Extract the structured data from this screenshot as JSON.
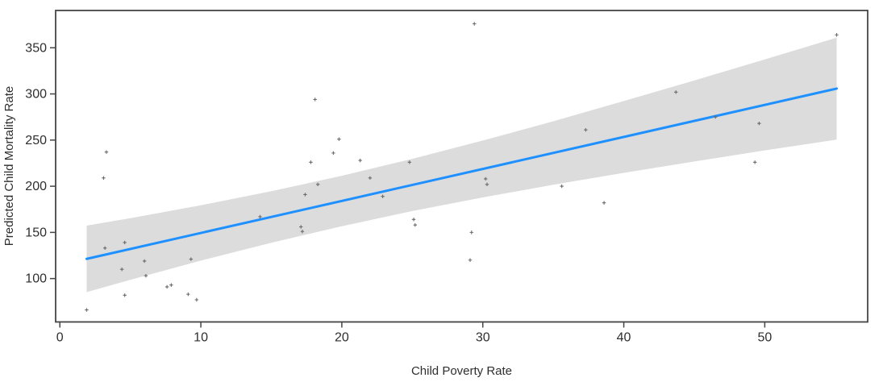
{
  "chart_data": {
    "type": "scatter",
    "title": "",
    "xlabel": "Child Poverty Rate",
    "ylabel": "Predicted Child Mortality Rate",
    "xlim": [
      -0.3,
      57.3
    ],
    "ylim": [
      53,
      390.4
    ],
    "x_ticks": [
      0,
      10,
      20,
      30,
      40,
      50
    ],
    "y_ticks": [
      100,
      150,
      200,
      250,
      300,
      350
    ],
    "grid": false,
    "legend": "none",
    "colors": {
      "regression_line": "#1E90FF",
      "confidence_band": "#DCDCDC",
      "marker": "#6a6a6a",
      "axis": "#454545",
      "text": "#2e2e2e",
      "background": "#ffffff"
    },
    "series": [
      {
        "name": "observations",
        "type": "scatter",
        "marker": "plus",
        "points": [
          [
            1.9,
            66
          ],
          [
            3.1,
            209
          ],
          [
            3.2,
            133
          ],
          [
            3.3,
            237
          ],
          [
            4.4,
            110
          ],
          [
            4.6,
            139
          ],
          [
            4.6,
            82
          ],
          [
            6.0,
            119
          ],
          [
            6.1,
            103
          ],
          [
            7.6,
            91
          ],
          [
            7.9,
            93
          ],
          [
            9.1,
            83
          ],
          [
            9.3,
            121
          ],
          [
            9.7,
            77
          ],
          [
            14.2,
            167
          ],
          [
            17.1,
            156
          ],
          [
            17.2,
            151
          ],
          [
            17.4,
            191
          ],
          [
            17.8,
            226
          ],
          [
            18.1,
            294
          ],
          [
            18.3,
            202
          ],
          [
            19.4,
            236
          ],
          [
            19.8,
            251
          ],
          [
            21.3,
            228
          ],
          [
            22.0,
            209
          ],
          [
            22.9,
            189
          ],
          [
            24.8,
            226
          ],
          [
            25.1,
            164
          ],
          [
            25.2,
            158
          ],
          [
            29.1,
            120
          ],
          [
            29.2,
            150
          ],
          [
            29.4,
            376
          ],
          [
            30.2,
            208
          ],
          [
            30.3,
            202
          ],
          [
            35.6,
            200
          ],
          [
            37.3,
            261
          ],
          [
            38.6,
            182
          ],
          [
            43.7,
            302
          ],
          [
            46.5,
            275
          ],
          [
            49.3,
            226
          ],
          [
            49.6,
            268
          ],
          [
            55.1,
            364
          ]
        ]
      },
      {
        "name": "fitted-regression-line",
        "type": "line",
        "points": [
          [
            1.9,
            121.3
          ],
          [
            55.1,
            305.8
          ]
        ]
      },
      {
        "name": "confidence-band",
        "type": "band",
        "points": [
          {
            "x": 1.9,
            "low": 85.3,
            "high": 157.3
          },
          {
            "x": 5.0,
            "low": 98.6,
            "high": 165.4
          },
          {
            "x": 10.0,
            "low": 119.4,
            "high": 179.4
          },
          {
            "x": 15.0,
            "low": 138.8,
            "high": 194.6
          },
          {
            "x": 20.0,
            "low": 156.7,
            "high": 211.3
          },
          {
            "x": 25.0,
            "low": 173.1,
            "high": 229.7
          },
          {
            "x": 30.0,
            "low": 187.9,
            "high": 249.5
          },
          {
            "x": 35.0,
            "low": 201.6,
            "high": 270.4
          },
          {
            "x": 40.0,
            "low": 214.5,
            "high": 292.3
          },
          {
            "x": 45.0,
            "low": 226.8,
            "high": 314.6
          },
          {
            "x": 50.0,
            "low": 238.8,
            "high": 337.4
          },
          {
            "x": 55.1,
            "low": 250.5,
            "high": 360.9
          }
        ]
      }
    ]
  }
}
